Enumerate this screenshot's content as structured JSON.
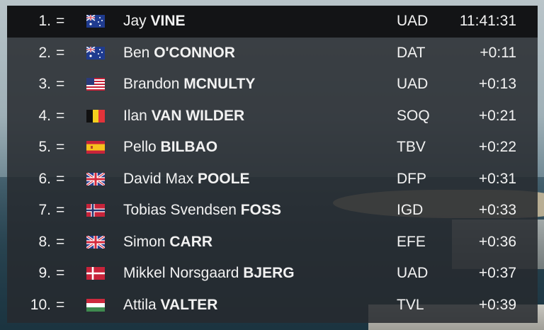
{
  "classification": [
    {
      "rank": "1.",
      "change": "=",
      "flag": "australia-flag-icon",
      "first_name": "Jay",
      "last_name": "VINE",
      "team": "UAD",
      "time": "11:41:31"
    },
    {
      "rank": "2.",
      "change": "=",
      "flag": "australia-flag-icon",
      "first_name": "Ben",
      "last_name": "O'CONNOR",
      "team": "DAT",
      "time": "+0:11"
    },
    {
      "rank": "3.",
      "change": "=",
      "flag": "usa-flag-icon",
      "first_name": "Brandon",
      "last_name": "MCNULTY",
      "team": "UAD",
      "time": "+0:13"
    },
    {
      "rank": "4.",
      "change": "=",
      "flag": "belgium-flag-icon",
      "first_name": "Ilan",
      "last_name": "VAN WILDER",
      "team": "SOQ",
      "time": "+0:21"
    },
    {
      "rank": "5.",
      "change": "=",
      "flag": "spain-flag-icon",
      "first_name": "Pello",
      "last_name": "BILBAO",
      "team": "TBV",
      "time": "+0:22"
    },
    {
      "rank": "6.",
      "change": "=",
      "flag": "uk-flag-icon",
      "first_name": "David Max",
      "last_name": "POOLE",
      "team": "DFP",
      "time": "+0:31"
    },
    {
      "rank": "7.",
      "change": "=",
      "flag": "norway-flag-icon",
      "first_name": "Tobias Svendsen",
      "last_name": "FOSS",
      "team": "IGD",
      "time": "+0:33"
    },
    {
      "rank": "8.",
      "change": "=",
      "flag": "uk-flag-icon",
      "first_name": "Simon",
      "last_name": "CARR",
      "team": "EFE",
      "time": "+0:36"
    },
    {
      "rank": "9.",
      "change": "=",
      "flag": "denmark-flag-icon",
      "first_name": "Mikkel Norsgaard",
      "last_name": "BJERG",
      "team": "UAD",
      "time": "+0:37"
    },
    {
      "rank": "10.",
      "change": "=",
      "flag": "hungary-flag-icon",
      "first_name": "Attila",
      "last_name": "VALTER",
      "team": "TVL",
      "time": "+0:39"
    }
  ]
}
